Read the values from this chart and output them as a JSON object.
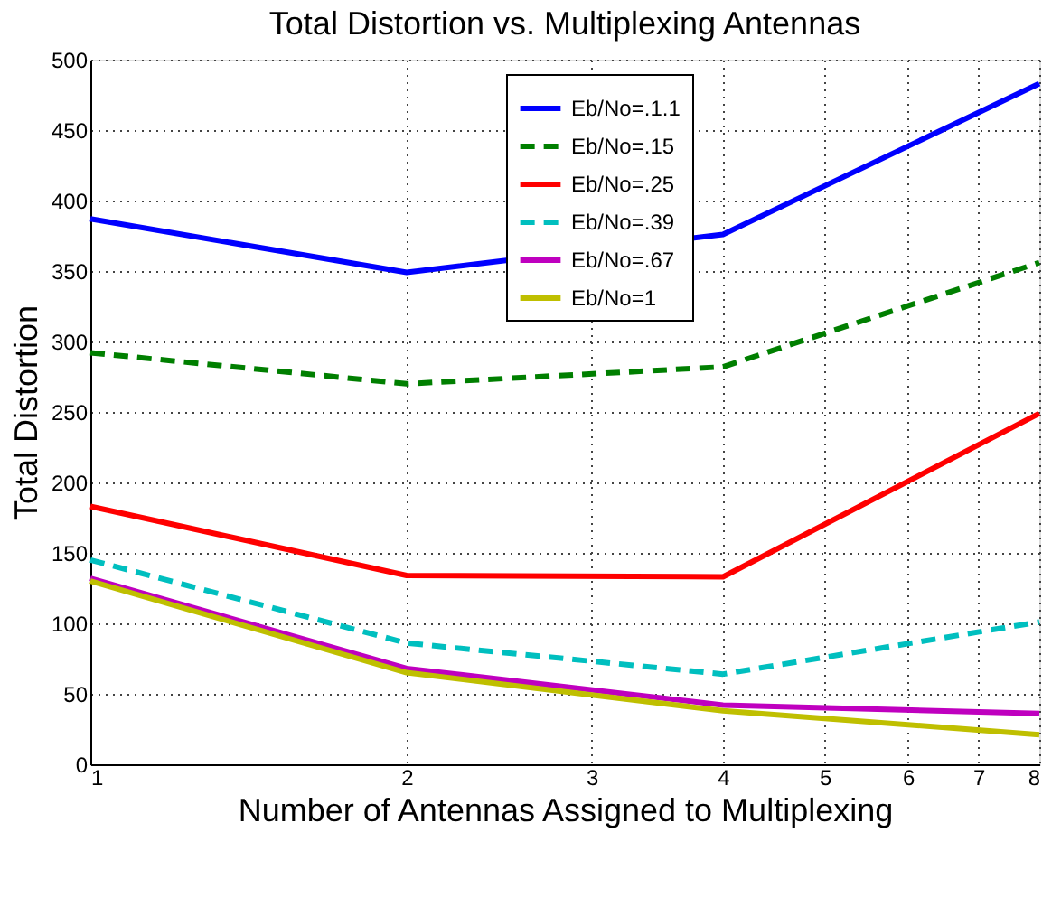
{
  "chart_data": {
    "type": "line",
    "title": "Total Distortion vs. Multiplexing Antennas",
    "xlabel": "Number of Antennas Assigned to Multiplexing",
    "ylabel": "Total Distortion",
    "x": [
      1,
      2,
      4,
      8
    ],
    "xlim": [
      1,
      8
    ],
    "xticks": [
      1,
      2,
      3,
      4,
      5,
      6,
      7,
      8
    ],
    "ylim": [
      0,
      500
    ],
    "yticks": [
      0,
      50,
      100,
      150,
      200,
      250,
      300,
      350,
      400,
      450,
      500
    ],
    "log": "x",
    "grid": true,
    "legend": "top",
    "marker": "none",
    "series": [
      {
        "name": "Eb/No=.1.1",
        "color": "#0000ff",
        "line_style": "solid",
        "values": [
          387,
          349,
          376,
          483
        ]
      },
      {
        "name": "Eb/No=.15",
        "color": "#007f00",
        "line_style": "dashed",
        "values": [
          292,
          270,
          282,
          356
        ]
      },
      {
        "name": "Eb/No=.25",
        "color": "#ff0000",
        "line_style": "solid",
        "values": [
          183,
          134,
          133,
          249
        ]
      },
      {
        "name": "Eb/No=.39",
        "color": "#00bfbf",
        "line_style": "dashed",
        "values": [
          145,
          86,
          64,
          101
        ]
      },
      {
        "name": "Eb/No=.67",
        "color": "#bf00bf",
        "line_style": "solid",
        "values": [
          132,
          68,
          42,
          36
        ]
      },
      {
        "name": "Eb/No=1",
        "color": "#bfbf00",
        "line_style": "solid",
        "values": [
          130,
          65,
          38,
          21
        ]
      }
    ]
  }
}
